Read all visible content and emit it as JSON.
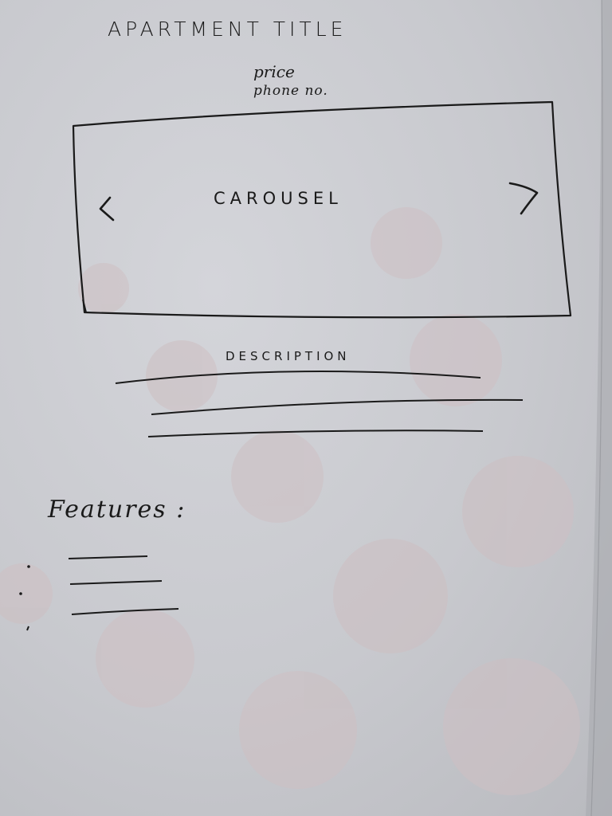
{
  "header": {
    "title": "APARTMENT   TITLE",
    "price": "price",
    "phone": "phone no."
  },
  "carousel": {
    "label": "CAROUSEL",
    "prev_icon": "chevron-left-icon",
    "next_icon": "chevron-right-icon"
  },
  "description": {
    "label": "DESCRIPTION"
  },
  "features": {
    "label": "Features :",
    "items": [
      "",
      "",
      ""
    ]
  },
  "colors": {
    "paper": "#c8c9ce",
    "ink": "#1a1a1a",
    "dot": "#cbbcbf"
  }
}
